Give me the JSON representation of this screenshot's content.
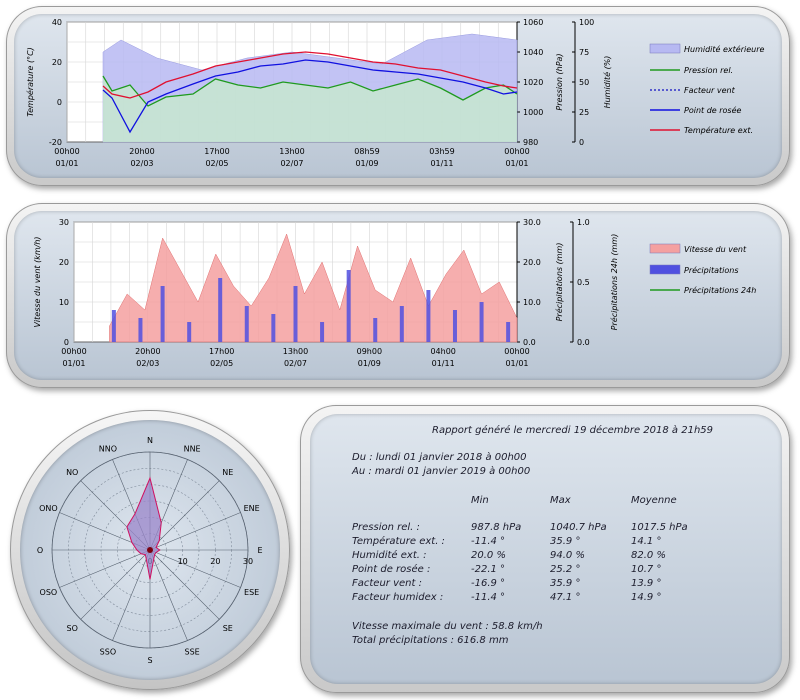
{
  "colors": {
    "humidity": "#b7b9f2",
    "pressure": "#1f9a1f",
    "wind_chill": "#3030c8",
    "dew_point": "#1010e0",
    "temperature": "#e01030",
    "wind": "#f4a0a0",
    "precip": "#5050e0",
    "precip24": "#1f9a1f"
  },
  "chart_data": [
    {
      "type": "line",
      "x_ticks": [
        [
          "00h00",
          "01/01"
        ],
        [
          "20h00",
          "02/03"
        ],
        [
          "17h00",
          "02/05"
        ],
        [
          "13h00",
          "02/07"
        ],
        [
          "08h59",
          "01/09"
        ],
        [
          "03h59",
          "01/11"
        ],
        [
          "00h00",
          "01/01"
        ]
      ],
      "y_left": {
        "label": "Température (°C)",
        "ticks": [
          "40",
          "20",
          "0",
          "-20"
        ],
        "range": [
          -20,
          40
        ]
      },
      "y_right1": {
        "label": "Pression (hPa)",
        "ticks": [
          "1060",
          "1040",
          "1020",
          "1000",
          "980"
        ],
        "range": [
          980,
          1060
        ]
      },
      "y_right2": {
        "label": "Humidité (%)",
        "ticks": [
          "100",
          "75",
          "50",
          "25",
          "0"
        ],
        "range": [
          0,
          100
        ]
      },
      "legend": [
        "Humidité extérieure",
        "Pression rel.",
        "Facteur vent",
        "Point de rosée",
        "Température ext."
      ],
      "series": [
        {
          "name": "Température ext.",
          "x": [
            0.08,
            0.1,
            0.14,
            0.18,
            0.22,
            0.28,
            0.33,
            0.38,
            0.43,
            0.48,
            0.53,
            0.58,
            0.63,
            0.68,
            0.73,
            0.78,
            0.83,
            0.88,
            0.93,
            0.97,
            1.0
          ],
          "values": [
            8,
            4,
            2,
            5,
            10,
            14,
            18,
            20,
            22,
            24,
            25,
            24,
            22,
            20,
            19,
            17,
            16,
            13,
            10,
            8,
            7
          ]
        },
        {
          "name": "Point de rosée",
          "x": [
            0.08,
            0.1,
            0.14,
            0.18,
            0.22,
            0.28,
            0.33,
            0.38,
            0.43,
            0.48,
            0.53,
            0.58,
            0.63,
            0.68,
            0.73,
            0.78,
            0.83,
            0.88,
            0.93,
            0.97,
            1.0
          ],
          "values": [
            6,
            2,
            -15,
            0,
            4,
            9,
            13,
            15,
            18,
            19,
            21,
            20,
            18,
            16,
            15,
            14,
            12,
            10,
            7,
            4,
            5
          ]
        },
        {
          "name": "Pression rel.",
          "x": [
            0.08,
            0.1,
            0.14,
            0.18,
            0.22,
            0.28,
            0.33,
            0.38,
            0.43,
            0.48,
            0.53,
            0.58,
            0.63,
            0.68,
            0.73,
            0.78,
            0.83,
            0.88,
            0.93,
            0.97,
            1.0
          ],
          "values": [
            1024,
            1014,
            1018,
            1004,
            1010,
            1012,
            1022,
            1018,
            1016,
            1020,
            1018,
            1016,
            1020,
            1014,
            1018,
            1022,
            1016,
            1008,
            1016,
            1018,
            1012
          ]
        },
        {
          "name": "Humidité extérieure",
          "x": [
            0.08,
            0.12,
            0.2,
            0.3,
            0.4,
            0.5,
            0.6,
            0.7,
            0.8,
            0.9,
            1.0
          ],
          "values": [
            75,
            85,
            70,
            60,
            70,
            75,
            70,
            65,
            85,
            90,
            85
          ]
        }
      ]
    },
    {
      "type": "bar",
      "x_ticks": [
        [
          "00h00",
          "01/01"
        ],
        [
          "20h00",
          "02/03"
        ],
        [
          "17h00",
          "02/05"
        ],
        [
          "13h00",
          "02/07"
        ],
        [
          "09h00",
          "01/09"
        ],
        [
          "04h00",
          "01/11"
        ],
        [
          "00h00",
          "01/01"
        ]
      ],
      "y_left": {
        "label": "Vitesse du vent (km/h)",
        "ticks": [
          "30",
          "20",
          "10",
          "0"
        ],
        "range": [
          0,
          30
        ]
      },
      "y_right1": {
        "label": "Précipitations (mm)",
        "ticks": [
          "30.0",
          "20.0",
          "10.0",
          "0.0"
        ],
        "range": [
          0,
          30
        ]
      },
      "y_right2": {
        "label": "Précipitations 24h (mm)",
        "ticks": [
          "1.0",
          "0.5",
          "0.0"
        ],
        "range": [
          0,
          1
        ]
      },
      "legend": [
        "Vitesse du vent",
        "Précipitations",
        "Précipitations 24h"
      ],
      "series": [
        {
          "name": "Vitesse du vent",
          "x": [
            0.08,
            0.12,
            0.16,
            0.2,
            0.24,
            0.28,
            0.32,
            0.36,
            0.4,
            0.44,
            0.48,
            0.52,
            0.56,
            0.6,
            0.64,
            0.68,
            0.72,
            0.76,
            0.8,
            0.84,
            0.88,
            0.92,
            0.96,
            1.0
          ],
          "values": [
            4,
            12,
            8,
            26,
            18,
            10,
            22,
            14,
            9,
            16,
            27,
            12,
            20,
            8,
            24,
            13,
            10,
            21,
            9,
            17,
            23,
            12,
            15,
            6
          ]
        },
        {
          "name": "Précipitations",
          "x": [
            0.09,
            0.15,
            0.2,
            0.26,
            0.33,
            0.39,
            0.45,
            0.5,
            0.56,
            0.62,
            0.68,
            0.74,
            0.8,
            0.86,
            0.92,
            0.98
          ],
          "values": [
            8,
            6,
            14,
            5,
            16,
            9,
            7,
            14,
            5,
            18,
            6,
            9,
            13,
            8,
            10,
            5
          ]
        },
        {
          "name": "Précipitations 24h",
          "x": [],
          "values": []
        }
      ]
    },
    {
      "type": "radar",
      "directions": [
        "N",
        "NNE",
        "NE",
        "ENE",
        "E",
        "ESE",
        "SE",
        "SSE",
        "S",
        "SSO",
        "SO",
        "OSO",
        "O",
        "ONO",
        "NO",
        "NNO"
      ],
      "ring_labels": [
        "0",
        "10",
        "20",
        "30"
      ],
      "values": [
        22,
        9,
        4,
        2,
        3,
        2,
        2,
        3,
        9,
        3,
        2,
        3,
        4,
        6,
        10,
        12
      ]
    }
  ],
  "report": {
    "title": "Rapport généré le mercredi 19 décembre 2018 à 21h59",
    "from": "Du : lundi 01 janvier 2018 à 00h00",
    "to": "Au : mardi 01 janvier 2019 à 00h00",
    "headers": [
      "Min",
      "Max",
      "Moyenne"
    ],
    "rows": [
      {
        "label": "Pression rel. :",
        "min": "987.8 hPa",
        "max": "1040.7 hPa",
        "avg": "1017.5 hPa"
      },
      {
        "label": "Température ext. :",
        "min": "-11.4 °",
        "max": "35.9 °",
        "avg": "14.1 °"
      },
      {
        "label": "Humidité ext. :",
        "min": "20.0 %",
        "max": "94.0 %",
        "avg": "82.0 %"
      },
      {
        "label": "Point de rosée :",
        "min": "-22.1 °",
        "max": "25.2 °",
        "avg": "10.7 °"
      },
      {
        "label": "Facteur vent :",
        "min": "-16.9 °",
        "max": "35.9 °",
        "avg": "13.9 °"
      },
      {
        "label": "Facteur humidex :",
        "min": "-11.4 °",
        "max": "47.1 °",
        "avg": "14.9 °"
      }
    ],
    "wind_max": "Vitesse maximale du vent : 58.8 km/h",
    "total_precip": "Total précipitations : 616.8 mm"
  }
}
